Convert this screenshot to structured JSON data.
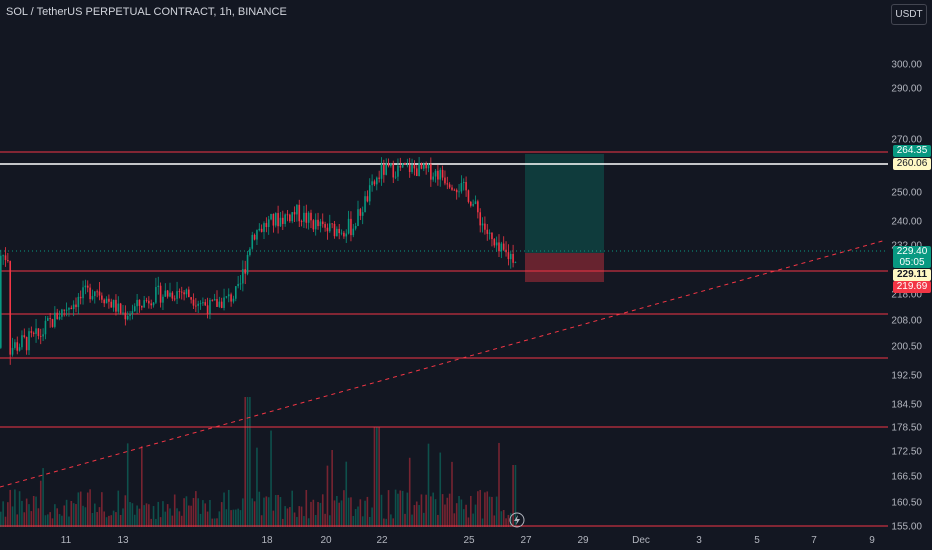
{
  "header": {
    "title": "SOL / TetherUS PERPETUAL CONTRACT, 1h, BINANCE",
    "currency": "USDT"
  },
  "price_axis": {
    "ticks": [
      "300.00",
      "290.00",
      "270.00",
      "250.00",
      "240.00",
      "232.00",
      "218.00",
      "208.00",
      "200.50",
      "192.50",
      "184.50",
      "178.50",
      "172.50",
      "166.50",
      "160.50",
      "155.00"
    ]
  },
  "time_axis": {
    "labels": [
      "11",
      "13",
      "18",
      "20",
      "22",
      "25",
      "27",
      "29",
      "Dec",
      "3",
      "5",
      "7",
      "9"
    ]
  },
  "price_labels": {
    "take_profit": {
      "text": "264.35",
      "color": "#089981"
    },
    "resistance": {
      "text": "260.06",
      "color": "#fff9c4"
    },
    "current": {
      "text": "229.40",
      "color": "#089981"
    },
    "countdown": {
      "text": "05:05"
    },
    "entry": {
      "text": "229.11",
      "color": "#fff9c4"
    },
    "stop_loss": {
      "text": "219.69",
      "color": "#f23645"
    }
  },
  "icons": {
    "replay": "lightning-icon"
  },
  "colors": {
    "bull": "#089981",
    "bear": "#f23645",
    "level": "#f23645",
    "background": "#131722"
  },
  "chart_data": {
    "type": "candlestick",
    "title": "SOL / TetherUS PERPETUAL CONTRACT, 1h, BINANCE",
    "timeframe": "1h",
    "price_range": [
      155,
      300
    ],
    "horizontal_levels": [
      264.35,
      260.06,
      221,
      209,
      197,
      178.5,
      155
    ],
    "white_level": 260.06,
    "position": {
      "entry": 229.11,
      "take_profit": 264.35,
      "stop_loss": 219.69
    },
    "trendline": {
      "from": {
        "date": "Nov 9",
        "price": 163
      },
      "to": {
        "date": "Dec 9",
        "price": 233
      },
      "style": "dashed"
    },
    "approx_path": [
      {
        "date": "9",
        "price": 200
      },
      {
        "date": "10",
        "price": 203
      },
      {
        "date": "11",
        "price": 213
      },
      {
        "date": "12",
        "price": 220
      },
      {
        "date": "13",
        "price": 210
      },
      {
        "date": "14",
        "price": 217
      },
      {
        "date": "15",
        "price": 219
      },
      {
        "date": "16",
        "price": 213
      },
      {
        "date": "17",
        "price": 218
      },
      {
        "date": "17.5",
        "price": 236
      },
      {
        "date": "18",
        "price": 239
      },
      {
        "date": "19",
        "price": 243
      },
      {
        "date": "20",
        "price": 237
      },
      {
        "date": "21",
        "price": 238
      },
      {
        "date": "22",
        "price": 258
      },
      {
        "date": "23",
        "price": 259
      },
      {
        "date": "24",
        "price": 257
      },
      {
        "date": "25",
        "price": 250
      },
      {
        "date": "25.5",
        "price": 240
      },
      {
        "date": "26",
        "price": 230
      },
      {
        "date": "26.5",
        "price": 229
      }
    ]
  }
}
